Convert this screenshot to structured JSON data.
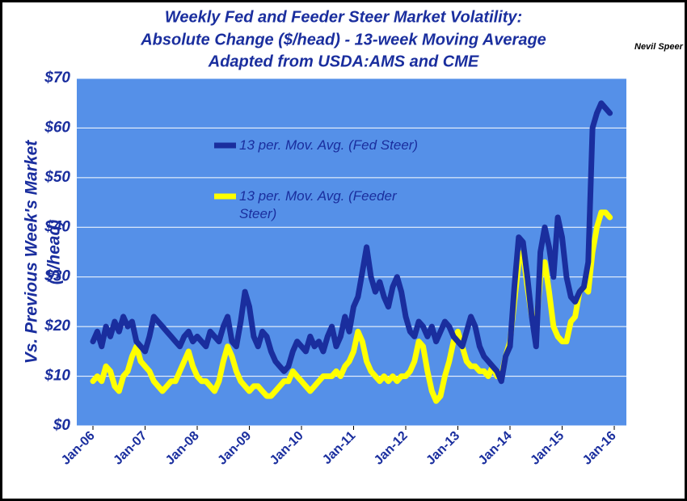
{
  "chart_data": {
    "type": "line",
    "title": "Weekly Fed and Feeder Steer Market Volatility:",
    "subtitle": "Absolute Change ($/head) - 13-week Moving Average",
    "source": "Adapted from USDA:AMS and CME",
    "author": "Nevil Speer",
    "y_label": "Vs. Previous Week's Market",
    "y_label_unit": "($/head)",
    "categories": [
      "Jan-06",
      null,
      null,
      null,
      null,
      null,
      null,
      null,
      null,
      null,
      null,
      null,
      "Jan-07",
      null,
      null,
      null,
      null,
      null,
      null,
      null,
      null,
      null,
      null,
      null,
      "Jan-08",
      null,
      null,
      null,
      null,
      null,
      null,
      null,
      null,
      null,
      null,
      null,
      "Jan-09",
      null,
      null,
      null,
      null,
      null,
      null,
      null,
      null,
      null,
      null,
      null,
      "Jan-10",
      null,
      null,
      null,
      null,
      null,
      null,
      null,
      null,
      null,
      null,
      null,
      "Jan-11",
      null,
      null,
      null,
      null,
      null,
      null,
      null,
      null,
      null,
      null,
      null,
      "Jan-12",
      null,
      null,
      null,
      null,
      null,
      null,
      null,
      null,
      null,
      null,
      null,
      "Jan-13",
      null,
      null,
      null,
      null,
      null,
      null,
      null,
      null,
      null,
      null,
      null,
      "Jan-14",
      null,
      null,
      null,
      null,
      null,
      null,
      null,
      null,
      null,
      null,
      null,
      "Jan-15",
      null,
      null,
      null,
      null,
      null,
      null,
      null,
      null,
      null,
      null,
      null,
      "Jan-16"
    ],
    "series": [
      {
        "name": "13 per. Mov. Avg. (Fed Steer)",
        "color": "#1a2e9e",
        "values": [
          17,
          19,
          16,
          20,
          18,
          21,
          19,
          22,
          20,
          21,
          17,
          16,
          15,
          18,
          22,
          21,
          20,
          19,
          18,
          17,
          16,
          18,
          19,
          17,
          18,
          17,
          16,
          19,
          18,
          17,
          20,
          22,
          17,
          16,
          21,
          27,
          24,
          18,
          16,
          19,
          18,
          15,
          13,
          12,
          11,
          12,
          15,
          17,
          16,
          15,
          18,
          16,
          17,
          15,
          18,
          20,
          16,
          18,
          22,
          19,
          24,
          26,
          31,
          36,
          30,
          27,
          29,
          26,
          24,
          28,
          30,
          27,
          22,
          19,
          18,
          21,
          20,
          18,
          20,
          17,
          19,
          21,
          20,
          18,
          17,
          16,
          19,
          22,
          20,
          16,
          14,
          13,
          12,
          11,
          9,
          14,
          16,
          28,
          38,
          37,
          30,
          22,
          16,
          35,
          40,
          36,
          30,
          42,
          38,
          30,
          26,
          25,
          27,
          28,
          33,
          60,
          63,
          65,
          64,
          63,
          null
        ]
      },
      {
        "name": "13 per. Mov. Avg. (Feeder Steer)",
        "color": "#ffff00",
        "values": [
          9,
          10,
          9,
          12,
          11,
          8,
          7,
          10,
          11,
          14,
          16,
          13,
          12,
          11,
          9,
          8,
          7,
          8,
          9,
          9,
          11,
          13,
          15,
          12,
          10,
          9,
          9,
          8,
          7,
          9,
          13,
          16,
          14,
          11,
          9,
          8,
          7,
          8,
          8,
          7,
          6,
          6,
          7,
          8,
          9,
          9,
          11,
          10,
          9,
          8,
          7,
          8,
          9,
          10,
          10,
          10,
          11,
          10,
          12,
          13,
          15,
          19,
          17,
          13,
          11,
          10,
          9,
          10,
          9,
          10,
          9,
          10,
          10,
          11,
          13,
          17,
          16,
          11,
          7,
          5,
          6,
          10,
          13,
          17,
          19,
          16,
          13,
          12,
          12,
          11,
          11,
          10,
          12,
          10,
          10,
          14,
          17,
          25,
          33,
          35,
          28,
          22,
          20,
          30,
          33,
          27,
          20,
          18,
          17,
          17,
          21,
          22,
          27,
          28,
          27,
          35,
          40,
          43,
          43,
          42,
          null
        ]
      }
    ],
    "ylim": [
      0,
      70
    ],
    "yticks": [
      {
        "value": 0,
        "label": "$0"
      },
      {
        "value": 10,
        "label": "$10"
      },
      {
        "value": 20,
        "label": "$20"
      },
      {
        "value": 30,
        "label": "$30"
      },
      {
        "value": 40,
        "label": "$40"
      },
      {
        "value": 50,
        "label": "$50"
      },
      {
        "value": 60,
        "label": "$60"
      },
      {
        "value": 70,
        "label": "$70"
      }
    ],
    "grid": true,
    "plot_color": "#5590e8"
  }
}
